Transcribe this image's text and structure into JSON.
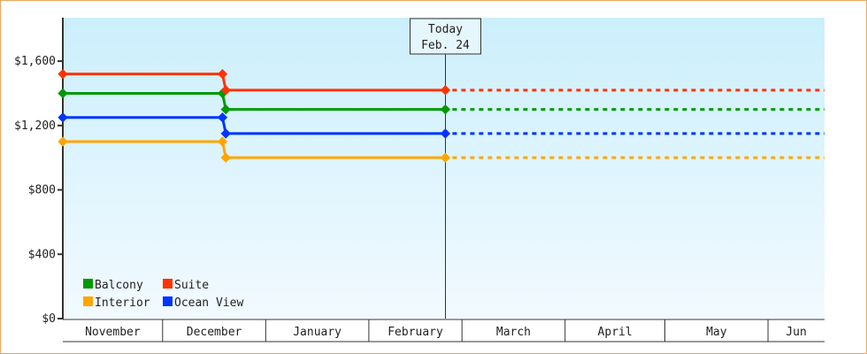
{
  "chart_data": {
    "type": "line",
    "line_style": "step",
    "x_axis": {
      "type": "date",
      "range": [
        "Nov 1",
        "Jun 18"
      ],
      "month_labels": [
        "November",
        "December",
        "January",
        "February",
        "March",
        "April",
        "May",
        "Jun"
      ]
    },
    "y_axis": {
      "range": [
        0,
        1870
      ],
      "ticks": [
        0,
        400,
        800,
        1200,
        1600
      ],
      "tick_labels": [
        "$0",
        "$400",
        "$800",
        "$1,200",
        "$1,600"
      ]
    },
    "today_marker": {
      "line1": "Today",
      "line2": "Feb. 24",
      "date": "Feb 24"
    },
    "projection_end": "Jun 18",
    "series": [
      {
        "name": "Balcony",
        "color": "#009900",
        "points": [
          [
            "Nov 1",
            1400
          ],
          [
            "Dec 19",
            1400
          ],
          [
            "Dec 20",
            1300
          ],
          [
            "Feb 24",
            1300
          ]
        ]
      },
      {
        "name": "Suite",
        "color": "#ff3300",
        "points": [
          [
            "Nov 1",
            1520
          ],
          [
            "Dec 19",
            1520
          ],
          [
            "Dec 20",
            1420
          ],
          [
            "Feb 24",
            1420
          ]
        ]
      },
      {
        "name": "Interior",
        "color": "#ffa500",
        "points": [
          [
            "Nov 1",
            1100
          ],
          [
            "Dec 19",
            1100
          ],
          [
            "Dec 20",
            1000
          ],
          [
            "Feb 24",
            1000
          ]
        ]
      },
      {
        "name": "Ocean View",
        "color": "#0033ff",
        "points": [
          [
            "Nov 1",
            1250
          ],
          [
            "Dec 19",
            1250
          ],
          [
            "Dec 20",
            1150
          ],
          [
            "Feb 24",
            1150
          ]
        ]
      }
    ],
    "legend": {
      "placement": "bottom-left",
      "order": [
        "Balcony",
        "Suite",
        "Interior",
        "Ocean View"
      ]
    },
    "background": {
      "top": "#cbeffc",
      "bottom": "#f2faff"
    },
    "grid": false
  }
}
